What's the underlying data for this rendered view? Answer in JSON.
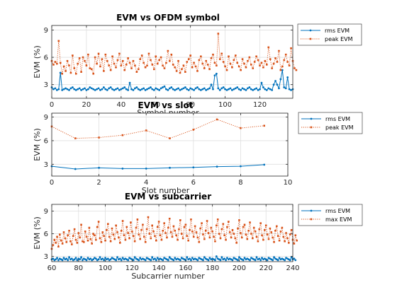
{
  "chart_data": [
    {
      "type": "line",
      "title": "EVM vs OFDM symbol",
      "xlabel": "Symbol number",
      "ylabel": "EVM (%)",
      "xlim": [
        0,
        139
      ],
      "ylim": [
        1.5,
        9.5
      ],
      "xticks": [
        0,
        20,
        40,
        60,
        80,
        100,
        120
      ],
      "yticks": [
        3,
        6,
        9
      ],
      "grid": true,
      "legend_position": "outside-right",
      "colors": [
        "#0072BD",
        "#D95319"
      ],
      "series": [
        {
          "name": "rms EVM",
          "style": "solid-dot",
          "color": "#0072BD",
          "values": [
            2.7,
            2.5,
            2.6,
            2.4,
            2.5,
            4.3,
            2.4,
            2.5,
            2.6,
            2.5,
            2.4,
            2.6,
            2.7,
            2.5,
            2.4,
            2.5,
            2.6,
            2.4,
            2.5,
            2.6,
            2.4,
            2.5,
            2.7,
            2.6,
            2.5,
            2.4,
            2.5,
            2.6,
            2.4,
            2.5,
            2.7,
            2.5,
            2.4,
            2.6,
            2.7,
            2.5,
            2.4,
            2.5,
            2.6,
            2.4,
            2.5,
            2.6,
            2.7,
            2.5,
            2.4,
            3.2,
            2.5,
            2.4,
            2.6,
            2.7,
            2.5,
            2.4,
            2.5,
            2.6,
            2.4,
            2.5,
            2.6,
            2.7,
            2.5,
            2.4,
            2.6,
            2.5,
            2.4,
            2.6,
            2.7,
            2.8,
            2.5,
            2.4,
            2.6,
            2.7,
            2.5,
            2.4,
            2.5,
            2.6,
            2.4,
            2.5,
            2.6,
            2.7,
            2.5,
            2.4,
            2.6,
            2.5,
            2.4,
            2.6,
            2.7,
            2.5,
            2.4,
            2.5,
            2.6,
            2.4,
            2.5,
            2.6,
            3.0,
            2.5,
            4.0,
            4.2,
            2.6,
            2.4,
            2.6,
            2.7,
            2.5,
            2.4,
            2.5,
            2.6,
            2.4,
            2.5,
            2.6,
            2.7,
            2.5,
            2.4,
            2.6,
            2.5,
            2.4,
            2.6,
            2.7,
            2.5,
            2.4,
            2.5,
            2.6,
            2.4,
            2.5,
            3.2,
            2.7,
            2.5,
            2.4,
            2.6,
            2.5,
            2.4,
            3.0,
            3.4,
            3.0,
            2.6,
            3.6,
            4.6,
            2.7,
            2.6,
            3.8,
            2.5,
            2.4,
            2.5
          ]
        },
        {
          "name": "peak EVM",
          "style": "dotted-square",
          "color": "#D95319",
          "values": [
            5.6,
            5.2,
            5.5,
            5.3,
            7.8,
            5.4,
            4.2,
            5.0,
            4.5,
            5.6,
            5.1,
            4.3,
            6.2,
            4.8,
            4.2,
            5.3,
            5.9,
            4.4,
            6.0,
            5.6,
            5.1,
            6.3,
            4.8,
            4.7,
            4.2,
            6.0,
            5.3,
            6.4,
            5.0,
            5.8,
            4.5,
            6.3,
            5.6,
            5.1,
            4.6,
            6.1,
            5.3,
            4.9,
            5.7,
            6.4,
            5.1,
            5.6,
            4.6,
            5.2,
            5.9,
            5.4,
            4.8,
            5.6,
            5.1,
            4.4,
            4.7,
            5.8,
            6.2,
            5.4,
            4.9,
            5.1,
            6.4,
            5.7,
            5.2,
            4.7,
            6.1,
            5.3,
            5.7,
            6.0,
            5.1,
            4.8,
            5.4,
            6.7,
            5.6,
            6.3,
            5.2,
            4.9,
            4.5,
            5.6,
            4.3,
            4.7,
            5.1,
            4.4,
            5.5,
            5.8,
            6.2,
            4.9,
            5.4,
            5.0,
            4.5,
            5.7,
            6.1,
            5.3,
            4.8,
            5.6,
            5.2,
            4.7,
            5.9,
            6.3,
            5.4,
            5.1,
            8.6,
            5.8,
            6.4,
            5.5,
            5.0,
            4.6,
            6.1,
            5.3,
            4.9,
            5.7,
            6.2,
            5.4,
            5.0,
            4.6,
            5.8,
            5.3,
            4.9,
            5.6,
            6.0,
            5.2,
            4.8,
            5.5,
            6.1,
            5.7,
            5.1,
            5.4,
            4.9,
            5.6,
            5.2,
            7.1,
            5.8,
            4.8,
            5.3,
            5.9,
            5.5,
            6.7,
            4.6,
            5.0,
            5.7,
            6.3,
            5.5,
            5.1,
            7.0,
            5.6,
            4.8,
            4.6
          ]
        }
      ]
    },
    {
      "type": "line",
      "title": "EVM vs slot",
      "xlabel": "Slot number",
      "ylabel": "EVM (%)",
      "xlim": [
        0,
        10
      ],
      "ylim": [
        1.5,
        9.5
      ],
      "xticks": [
        0,
        2,
        4,
        6,
        8,
        10
      ],
      "yticks": [
        3,
        6,
        9
      ],
      "grid": true,
      "legend_position": "outside-right",
      "x": [
        0,
        1,
        2,
        3,
        4,
        5,
        6,
        7,
        8,
        9
      ],
      "series": [
        {
          "name": "rms EVM",
          "style": "solid-dot",
          "color": "#0072BD",
          "values": [
            2.75,
            2.4,
            2.55,
            2.45,
            2.45,
            2.55,
            2.6,
            2.7,
            2.75,
            2.95
          ]
        },
        {
          "name": "peak EVM",
          "style": "dotted-square",
          "color": "#D95319",
          "values": [
            7.8,
            6.3,
            6.4,
            6.7,
            7.3,
            6.3,
            7.4,
            8.7,
            7.6,
            7.9
          ]
        }
      ]
    },
    {
      "type": "line",
      "title": "EVM vs subcarrier",
      "xlabel": "Subcarrier number",
      "ylabel": "EVM (%)",
      "xlim": [
        60,
        240
      ],
      "ylim": [
        2.3,
        9.9
      ],
      "xticks": [
        60,
        80,
        100,
        120,
        140,
        160,
        180,
        200,
        220,
        240
      ],
      "yticks": [
        3,
        6,
        9
      ],
      "grid": true,
      "legend_position": "outside-right",
      "x_start": 60,
      "x_step": 1,
      "series": [
        {
          "name": "rms EVM",
          "style": "solid-dot",
          "color": "#0072BD",
          "values": [
            2.6,
            2.7,
            2.5,
            2.6,
            2.8,
            2.5,
            2.7,
            2.6,
            2.5,
            2.8,
            2.6,
            2.7,
            2.5,
            2.9,
            2.6,
            2.7,
            2.5,
            2.6,
            2.8,
            2.5,
            2.7,
            2.6,
            2.9,
            2.5,
            2.7,
            2.6,
            2.5,
            2.8,
            2.6,
            2.7,
            2.5,
            2.6,
            2.8,
            2.7,
            2.5,
            2.6,
            2.9,
            2.6,
            2.7,
            2.5,
            2.8,
            2.6,
            2.7,
            2.5,
            2.6,
            2.8,
            2.7,
            2.6,
            2.5,
            2.9,
            2.6,
            2.7,
            2.5,
            2.8,
            2.6,
            2.7,
            2.6,
            2.5,
            2.8,
            2.7,
            2.6,
            2.5,
            2.9,
            2.7,
            2.6,
            2.5,
            2.8,
            2.6,
            2.7,
            2.6,
            2.5,
            2.8,
            2.7,
            2.6,
            2.5,
            2.9,
            2.6,
            2.7,
            2.5,
            2.8,
            2.6,
            2.7,
            2.6,
            2.5,
            2.8,
            2.7,
            2.6,
            2.5,
            2.9,
            2.7,
            2.6,
            2.5,
            2.8,
            2.6,
            2.7,
            2.6,
            2.5,
            2.8,
            2.7,
            2.6,
            2.5,
            2.9,
            2.6,
            2.7,
            2.5,
            2.8,
            2.6,
            2.7,
            2.6,
            2.5,
            2.8,
            2.7,
            2.6,
            2.5,
            2.9,
            2.7,
            2.6,
            2.5,
            2.8,
            2.6,
            2.7,
            2.6,
            2.5,
            3.0,
            2.7,
            2.6,
            2.5,
            2.9,
            2.6,
            2.7,
            2.5,
            2.8,
            2.6,
            2.7,
            2.6,
            2.5,
            2.8,
            2.7,
            2.6,
            2.5,
            2.9,
            2.7,
            2.6,
            2.5,
            2.8,
            2.6,
            2.7,
            2.6,
            2.5,
            2.8,
            2.7,
            2.6,
            2.5,
            2.9,
            2.6,
            2.7,
            2.5,
            2.8,
            2.6,
            2.7,
            2.6,
            2.5,
            2.8,
            2.7,
            2.6,
            2.5,
            2.9,
            2.7,
            2.6,
            2.5,
            2.8,
            2.6,
            2.7,
            2.6,
            2.5,
            2.8,
            2.7,
            2.6,
            2.5,
            2.9,
            2.6,
            2.7,
            2.5
          ]
        },
        {
          "name": "max EVM",
          "style": "dotted-square",
          "color": "#D95319",
          "values": [
            4.0,
            4.5,
            5.2,
            4.8,
            5.6,
            4.3,
            5.9,
            5.1,
            4.7,
            6.2,
            5.4,
            4.9,
            5.8,
            6.4,
            5.0,
            4.6,
            5.7,
            6.6,
            5.2,
            4.8,
            6.1,
            5.5,
            7.2,
            5.0,
            4.9,
            6.3,
            5.6,
            5.1,
            6.8,
            5.3,
            4.7,
            6.0,
            5.8,
            5.2,
            6.9,
            7.6,
            5.4,
            4.9,
            6.2,
            5.7,
            5.1,
            6.5,
            7.3,
            5.6,
            5.0,
            6.7,
            5.9,
            5.3,
            7.1,
            6.2,
            5.5,
            4.8,
            6.4,
            7.7,
            5.8,
            5.2,
            6.9,
            6.1,
            5.4,
            7.5,
            6.3,
            5.7,
            5.0,
            6.8,
            7.9,
            5.9,
            5.3,
            6.5,
            7.2,
            5.6,
            4.9,
            6.6,
            8.2,
            6.0,
            5.4,
            7.1,
            6.3,
            5.7,
            5.1,
            6.9,
            7.6,
            5.8,
            5.2,
            6.4,
            7.4,
            6.1,
            5.5,
            6.8,
            8.0,
            6.2,
            5.6,
            7.0,
            6.4,
            5.8,
            5.2,
            6.6,
            7.8,
            6.0,
            5.4,
            6.9,
            7.2,
            5.7,
            5.1,
            6.5,
            7.9,
            6.3,
            5.6,
            7.0,
            6.2,
            5.5,
            4.9,
            6.7,
            7.4,
            5.9,
            5.3,
            6.4,
            7.7,
            6.1,
            5.5,
            6.8,
            6.3,
            5.6,
            5.0,
            7.1,
            7.9,
            6.0,
            5.4,
            6.6,
            7.3,
            5.8,
            5.2,
            6.9,
            7.6,
            6.2,
            5.5,
            6.5,
            6.0,
            5.4,
            4.8,
            6.7,
            7.8,
            6.1,
            5.5,
            6.9,
            7.2,
            5.9,
            5.3,
            6.4,
            7.5,
            6.0,
            5.4,
            6.8,
            6.3,
            5.6,
            5.0,
            6.6,
            7.4,
            5.8,
            5.2,
            6.5,
            7.1,
            5.9,
            5.3,
            6.7,
            6.2,
            5.5,
            4.9,
            6.4,
            7.0,
            5.7,
            5.1,
            6.3,
            6.8,
            5.6,
            5.0,
            6.1,
            5.4,
            4.8,
            5.9,
            6.5,
            5.2,
            4.7,
            5.8,
            5.1
          ]
        }
      ]
    }
  ]
}
